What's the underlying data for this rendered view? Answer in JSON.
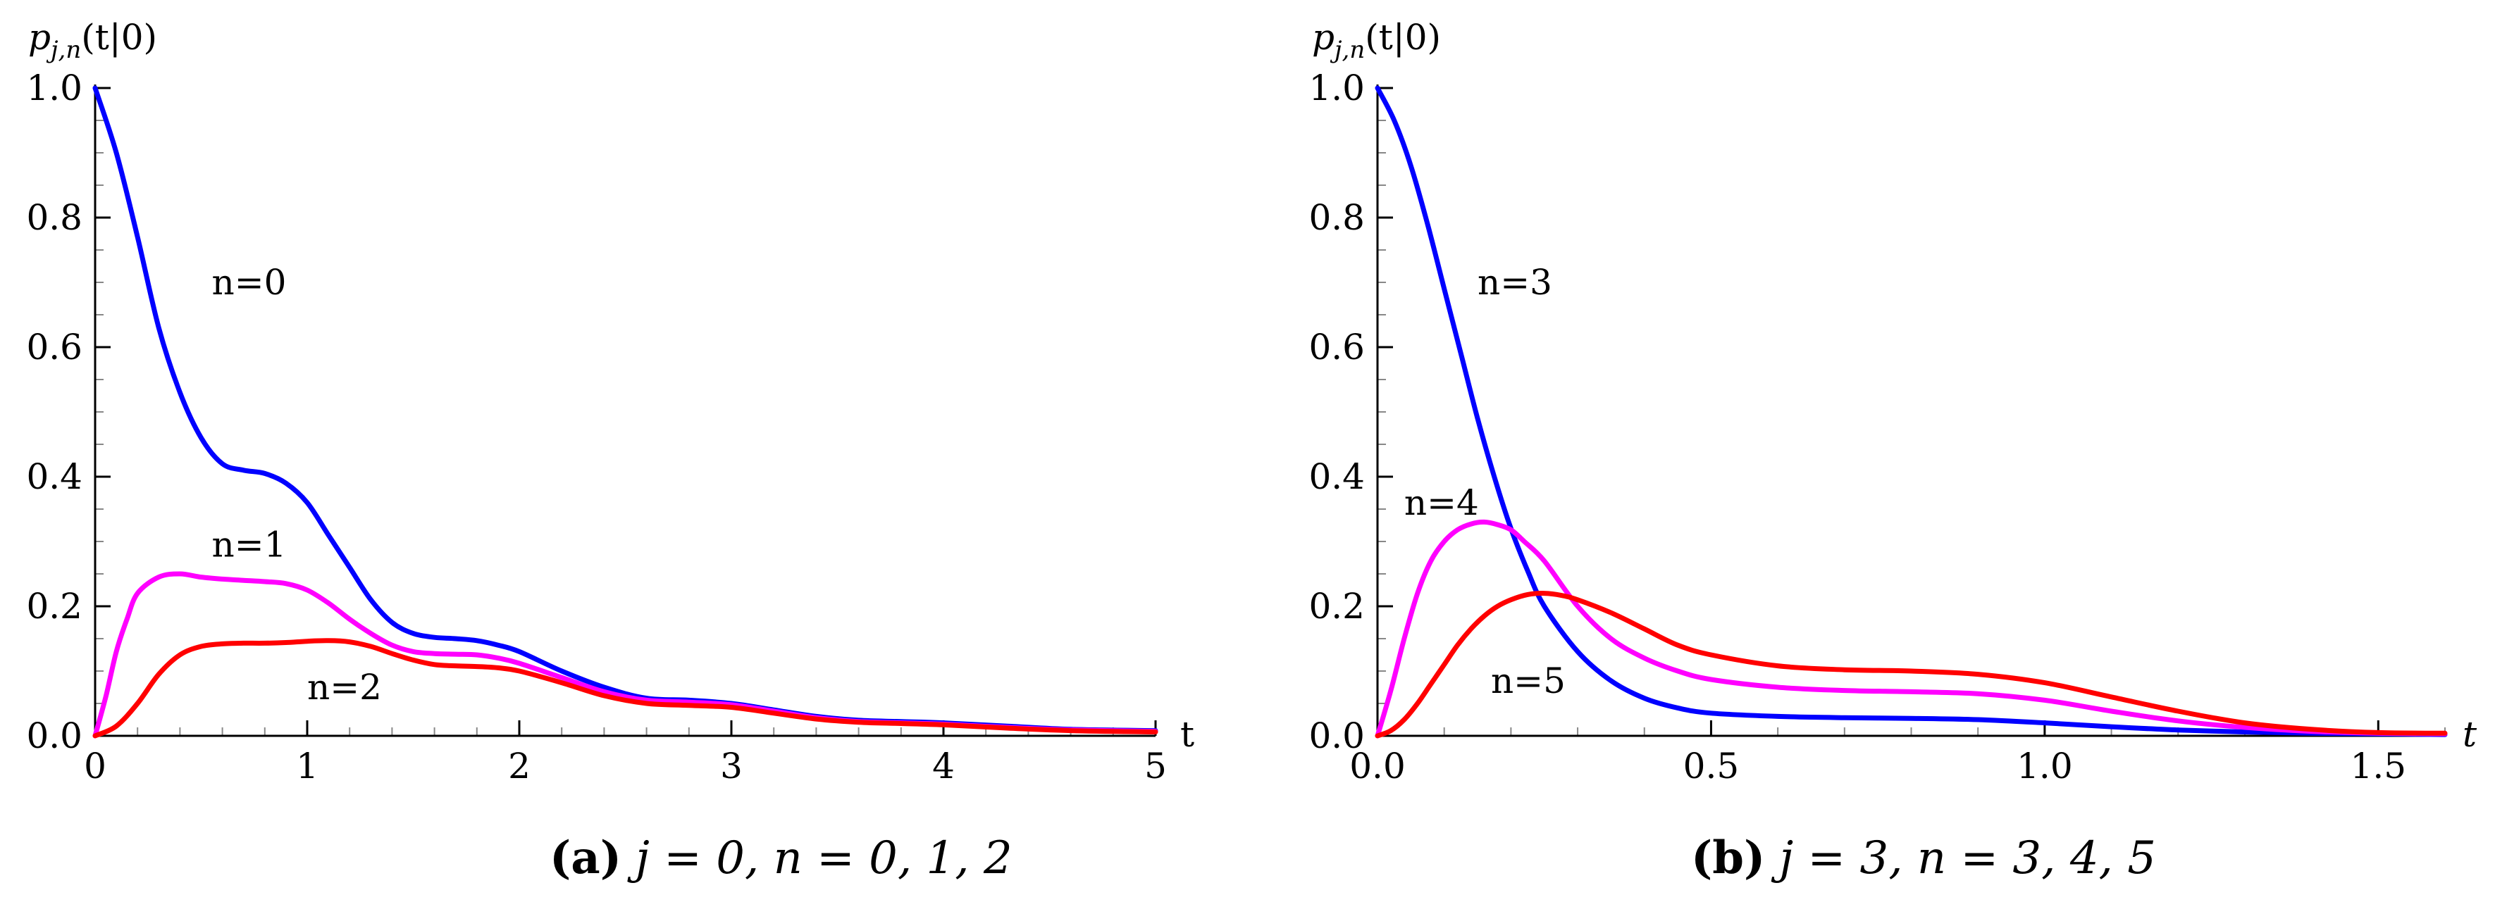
{
  "chart_data": [
    {
      "type": "line",
      "ylabel_prefix": "p",
      "ylabel_sub": "j,n",
      "ylabel_suffix": "(t|0)",
      "xlabel": "t",
      "xlim": [
        0,
        5
      ],
      "ylim": [
        0,
        1
      ],
      "xticks": [
        0,
        1,
        2,
        3,
        4,
        5
      ],
      "xtick_labels": [
        "0",
        "1",
        "2",
        "3",
        "4",
        "5"
      ],
      "yticks": [
        0,
        0.2,
        0.4,
        0.6,
        0.8,
        1.0
      ],
      "ytick_labels": [
        "0.0",
        "0.2",
        "0.4",
        "0.6",
        "0.8",
        "1.0"
      ],
      "caption_letter": "(a)",
      "caption_text": "j = 0, n = 0, 1, 2",
      "series": [
        {
          "name": "n=0",
          "color": "#0000ff",
          "x": [
            0,
            0.1,
            0.2,
            0.3,
            0.4,
            0.5,
            0.6,
            0.7,
            0.8,
            0.9,
            1.0,
            1.1,
            1.2,
            1.3,
            1.4,
            1.5,
            1.6,
            1.7,
            1.8,
            1.9,
            2.0,
            2.2,
            2.4,
            2.6,
            2.8,
            3.0,
            3.2,
            3.4,
            3.6,
            3.8,
            4.0,
            4.3,
            4.6,
            5.0
          ],
          "y": [
            1.0,
            0.9,
            0.77,
            0.63,
            0.53,
            0.46,
            0.42,
            0.41,
            0.405,
            0.39,
            0.36,
            0.31,
            0.26,
            0.21,
            0.175,
            0.158,
            0.152,
            0.15,
            0.147,
            0.14,
            0.13,
            0.1,
            0.075,
            0.058,
            0.055,
            0.05,
            0.04,
            0.03,
            0.024,
            0.022,
            0.02,
            0.015,
            0.01,
            0.008
          ]
        },
        {
          "name": "n=1",
          "color": "#ff00ff",
          "x": [
            0,
            0.05,
            0.1,
            0.15,
            0.2,
            0.3,
            0.4,
            0.5,
            0.6,
            0.7,
            0.8,
            0.9,
            1.0,
            1.1,
            1.2,
            1.3,
            1.4,
            1.5,
            1.6,
            1.7,
            1.8,
            1.9,
            2.0,
            2.2,
            2.4,
            2.6,
            2.8,
            3.0,
            3.2,
            3.4,
            3.6,
            3.8,
            4.0,
            4.3,
            4.6,
            5.0
          ],
          "y": [
            0,
            0.06,
            0.13,
            0.18,
            0.22,
            0.245,
            0.25,
            0.245,
            0.242,
            0.24,
            0.238,
            0.235,
            0.225,
            0.205,
            0.18,
            0.158,
            0.14,
            0.13,
            0.127,
            0.126,
            0.125,
            0.12,
            0.112,
            0.09,
            0.068,
            0.055,
            0.052,
            0.048,
            0.038,
            0.028,
            0.022,
            0.02,
            0.018,
            0.013,
            0.009,
            0.007
          ]
        },
        {
          "name": "n=2",
          "color": "#ff0000",
          "x": [
            0,
            0.1,
            0.2,
            0.3,
            0.4,
            0.5,
            0.6,
            0.7,
            0.8,
            0.9,
            1.0,
            1.1,
            1.2,
            1.3,
            1.4,
            1.5,
            1.6,
            1.7,
            1.8,
            1.9,
            2.0,
            2.2,
            2.4,
            2.6,
            2.8,
            3.0,
            3.2,
            3.4,
            3.6,
            3.8,
            4.0,
            4.3,
            4.6,
            5.0
          ],
          "y": [
            0,
            0.015,
            0.05,
            0.095,
            0.125,
            0.138,
            0.142,
            0.143,
            0.143,
            0.144,
            0.146,
            0.147,
            0.145,
            0.138,
            0.127,
            0.117,
            0.11,
            0.108,
            0.107,
            0.105,
            0.1,
            0.082,
            0.062,
            0.05,
            0.047,
            0.044,
            0.035,
            0.026,
            0.021,
            0.019,
            0.017,
            0.012,
            0.008,
            0.006
          ]
        }
      ],
      "annotations": [
        {
          "text": "n=0",
          "x": 0.55,
          "y": 0.7
        },
        {
          "text": "n=1",
          "x": 0.55,
          "y": 0.295
        },
        {
          "text": "n=2",
          "x": 1.0,
          "y": 0.075
        }
      ]
    },
    {
      "type": "line",
      "ylabel_prefix": "p",
      "ylabel_sub": "j,n",
      "ylabel_suffix": "(t|0)",
      "xlabel": "t",
      "xlim": [
        0,
        1.6
      ],
      "ylim": [
        0,
        1
      ],
      "xticks": [
        0,
        0.5,
        1.0,
        1.5
      ],
      "xtick_labels": [
        "0.0",
        "0.5",
        "1.0",
        "1.5"
      ],
      "yticks": [
        0,
        0.2,
        0.4,
        0.6,
        0.8,
        1.0
      ],
      "ytick_labels": [
        "0.0",
        "0.2",
        "0.4",
        "0.6",
        "0.8",
        "1.0"
      ],
      "caption_letter": "(b)",
      "caption_text": "j = 3, n = 3, 4, 5",
      "series": [
        {
          "name": "n=3",
          "color": "#0000ff",
          "x": [
            0,
            0.025,
            0.05,
            0.075,
            0.1,
            0.125,
            0.15,
            0.175,
            0.2,
            0.225,
            0.25,
            0.3,
            0.35,
            0.4,
            0.45,
            0.5,
            0.6,
            0.7,
            0.8,
            0.9,
            1.0,
            1.1,
            1.2,
            1.3,
            1.4,
            1.5,
            1.6
          ],
          "y": [
            1.0,
            0.95,
            0.88,
            0.79,
            0.69,
            0.59,
            0.49,
            0.4,
            0.32,
            0.255,
            0.2,
            0.13,
            0.085,
            0.058,
            0.043,
            0.035,
            0.03,
            0.028,
            0.027,
            0.025,
            0.02,
            0.014,
            0.009,
            0.006,
            0.004,
            0.003,
            0.002
          ]
        },
        {
          "name": "n=4",
          "color": "#ff00ff",
          "x": [
            0,
            0.02,
            0.04,
            0.06,
            0.08,
            0.1,
            0.12,
            0.14,
            0.16,
            0.18,
            0.2,
            0.22,
            0.25,
            0.3,
            0.35,
            0.4,
            0.45,
            0.5,
            0.6,
            0.7,
            0.8,
            0.9,
            1.0,
            1.1,
            1.2,
            1.3,
            1.4,
            1.5,
            1.6
          ],
          "y": [
            0,
            0.07,
            0.15,
            0.22,
            0.27,
            0.3,
            0.318,
            0.327,
            0.33,
            0.326,
            0.318,
            0.3,
            0.27,
            0.2,
            0.15,
            0.12,
            0.1,
            0.087,
            0.075,
            0.07,
            0.068,
            0.065,
            0.055,
            0.038,
            0.023,
            0.013,
            0.007,
            0.004,
            0.003
          ]
        },
        {
          "name": "n=5",
          "color": "#ff0000",
          "x": [
            0,
            0.02,
            0.04,
            0.06,
            0.08,
            0.1,
            0.12,
            0.14,
            0.16,
            0.18,
            0.2,
            0.225,
            0.25,
            0.275,
            0.3,
            0.35,
            0.4,
            0.45,
            0.5,
            0.6,
            0.7,
            0.8,
            0.9,
            1.0,
            1.1,
            1.2,
            1.3,
            1.4,
            1.5,
            1.6
          ],
          "y": [
            0,
            0.008,
            0.025,
            0.05,
            0.08,
            0.11,
            0.14,
            0.165,
            0.185,
            0.2,
            0.21,
            0.218,
            0.22,
            0.217,
            0.21,
            0.19,
            0.165,
            0.14,
            0.125,
            0.108,
            0.102,
            0.1,
            0.095,
            0.082,
            0.06,
            0.038,
            0.02,
            0.01,
            0.005,
            0.004
          ]
        }
      ],
      "annotations": [
        {
          "text": "n=3",
          "x": 0.15,
          "y": 0.7
        },
        {
          "text": "n=4",
          "x": 0.04,
          "y": 0.36
        },
        {
          "text": "n=5",
          "x": 0.17,
          "y": 0.085
        }
      ]
    }
  ]
}
